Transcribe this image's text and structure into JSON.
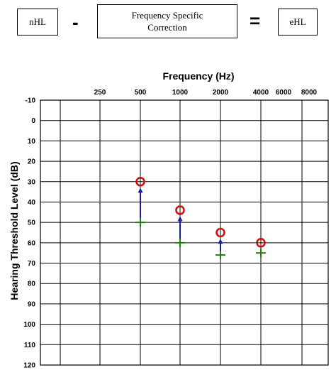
{
  "formula": {
    "left_box": "nHL",
    "operator_minus": "-",
    "middle_box_line1": "Frequency Specific",
    "middle_box_line2": "Correction",
    "operator_equals": "=",
    "right_box": "eHL"
  },
  "chart_data": {
    "type": "scatter",
    "title": "",
    "xlabel": "Frequency (Hz)",
    "ylabel": "Hearing Threshold Level (dB)",
    "x_ticks": [
      "250",
      "500",
      "1000",
      "2000",
      "4000",
      "6000",
      "8000"
    ],
    "y_ticks": [
      "-10",
      "0",
      "10",
      "20",
      "30",
      "40",
      "50",
      "60",
      "70",
      "80",
      "90",
      "100",
      "110",
      "120"
    ],
    "ylim": [
      -10,
      120
    ],
    "y_inverted": true,
    "grid": true,
    "series": [
      {
        "marker": "circle",
        "color": "#cc1111",
        "points": [
          {
            "x": "500",
            "y": 30
          },
          {
            "x": "1000",
            "y": 44
          },
          {
            "x": "2000",
            "y": 55
          },
          {
            "x": "4000",
            "y": 60
          }
        ]
      },
      {
        "marker": "plus",
        "color": "#2a7a1a",
        "points": [
          {
            "x": "500",
            "y": 50
          },
          {
            "x": "1000",
            "y": 60
          },
          {
            "x": "2000",
            "y": 66
          },
          {
            "x": "4000",
            "y": 65
          }
        ]
      }
    ],
    "arrows": [
      {
        "x": "500",
        "from": 50,
        "to": 33
      },
      {
        "x": "1000",
        "from": 60,
        "to": 47
      },
      {
        "x": "2000",
        "from": 66,
        "to": 58
      }
    ],
    "arrow_color": "#1a1aa0"
  }
}
